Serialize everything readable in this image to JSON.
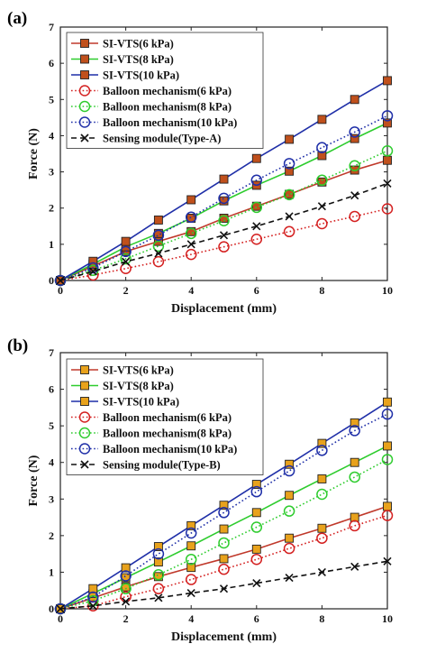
{
  "chart_data": [
    {
      "type": "line",
      "panel_label": "(a)",
      "xlabel": "Displacement (mm)",
      "ylabel": "Force (N)",
      "xlim": [
        0,
        10
      ],
      "ylim": [
        0,
        7
      ],
      "xticks": [
        0,
        2,
        4,
        6,
        8,
        10
      ],
      "yticks": [
        0,
        1,
        2,
        3,
        4,
        5,
        6,
        7
      ],
      "grid": false,
      "legend_position": "top-left",
      "x": [
        0,
        1,
        2,
        3,
        4,
        5,
        6,
        7,
        8,
        9,
        10
      ],
      "series": [
        {
          "name": "SI-VTS(6 kPa)",
          "values": [
            0,
            0.4,
            0.8,
            1.08,
            1.35,
            1.72,
            2.05,
            2.38,
            2.72,
            3.05,
            3.32
          ],
          "color": "#c0392b",
          "marker": "square",
          "marker_fill": "#c0501c",
          "dash": "solid"
        },
        {
          "name": "SI-VTS(8 kPa)",
          "values": [
            0,
            0.45,
            0.93,
            1.3,
            1.72,
            2.2,
            2.63,
            3.02,
            3.45,
            3.92,
            4.35
          ],
          "color": "#2ecc2e",
          "marker": "square",
          "marker_fill": "#c0501c",
          "dash": "solid"
        },
        {
          "name": "SI-VTS(10 kPa)",
          "values": [
            0,
            0.53,
            1.08,
            1.67,
            2.23,
            2.8,
            3.37,
            3.9,
            4.45,
            5.0,
            5.52
          ],
          "color": "#1f2fa8",
          "marker": "square",
          "marker_fill": "#c0501c",
          "dash": "solid"
        },
        {
          "name": "Balloon mechanism(6 kPa)",
          "values": [
            0,
            0.15,
            0.33,
            0.52,
            0.72,
            0.93,
            1.14,
            1.35,
            1.57,
            1.77,
            1.98
          ],
          "color": "#d42020",
          "marker": "circle",
          "marker_fill": "none",
          "dash": "dot"
        },
        {
          "name": "Balloon mechanism(8 kPa)",
          "values": [
            0,
            0.28,
            0.6,
            0.95,
            1.3,
            1.65,
            2.02,
            2.37,
            2.77,
            3.17,
            3.58
          ],
          "color": "#2ecc2e",
          "marker": "circle",
          "marker_fill": "none",
          "dash": "dot"
        },
        {
          "name": "Balloon mechanism(10 kPa)",
          "values": [
            0,
            0.35,
            0.8,
            1.25,
            1.75,
            2.27,
            2.77,
            3.23,
            3.67,
            4.1,
            4.55
          ],
          "color": "#1f2fa8",
          "marker": "circle",
          "marker_fill": "none",
          "dash": "dot"
        },
        {
          "name": "Sensing module(Type-A)",
          "values": [
            0,
            0.25,
            0.52,
            0.75,
            1.0,
            1.25,
            1.5,
            1.77,
            2.05,
            2.35,
            2.68
          ],
          "color": "#111111",
          "marker": "x",
          "marker_fill": "none",
          "dash": "dash"
        }
      ]
    },
    {
      "type": "line",
      "panel_label": "(b)",
      "xlabel": "Displacement (mm)",
      "ylabel": "Force (N)",
      "xlim": [
        0,
        10
      ],
      "ylim": [
        0,
        7
      ],
      "xticks": [
        0,
        2,
        4,
        6,
        8,
        10
      ],
      "yticks": [
        0,
        1,
        2,
        3,
        4,
        5,
        6,
        7
      ],
      "grid": false,
      "legend_position": "top-left",
      "x": [
        0,
        1,
        2,
        3,
        4,
        5,
        6,
        7,
        8,
        9,
        10
      ],
      "series": [
        {
          "name": "SI-VTS(6 kPa)",
          "values": [
            0,
            0.3,
            0.6,
            0.88,
            1.13,
            1.37,
            1.63,
            1.93,
            2.2,
            2.5,
            2.8
          ],
          "color": "#c0392b",
          "marker": "square",
          "marker_fill": "#e8a21c",
          "dash": "solid"
        },
        {
          "name": "SI-VTS(8 kPa)",
          "values": [
            0,
            0.42,
            0.85,
            1.28,
            1.72,
            2.18,
            2.63,
            3.1,
            3.55,
            4.0,
            4.45
          ],
          "color": "#2ecc2e",
          "marker": "square",
          "marker_fill": "#e8a21c",
          "dash": "solid"
        },
        {
          "name": "SI-VTS(10 kPa)",
          "values": [
            0,
            0.55,
            1.12,
            1.7,
            2.27,
            2.83,
            3.4,
            3.95,
            4.52,
            5.08,
            5.65
          ],
          "color": "#1f2fa8",
          "marker": "square",
          "marker_fill": "#e8a21c",
          "dash": "solid"
        },
        {
          "name": "Balloon mechanism(6 kPa)",
          "values": [
            0,
            0.08,
            0.33,
            0.55,
            0.8,
            1.08,
            1.35,
            1.65,
            1.93,
            2.27,
            2.55
          ],
          "color": "#d42020",
          "marker": "circle",
          "marker_fill": "none",
          "dash": "dot"
        },
        {
          "name": "Balloon mechanism(8 kPa)",
          "values": [
            0,
            0.22,
            0.55,
            0.93,
            1.35,
            1.8,
            2.23,
            2.67,
            3.13,
            3.6,
            4.08
          ],
          "color": "#2ecc2e",
          "marker": "circle",
          "marker_fill": "none",
          "dash": "dot"
        },
        {
          "name": "Balloon mechanism(10 kPa)",
          "values": [
            0,
            0.32,
            0.9,
            1.5,
            2.07,
            2.63,
            3.2,
            3.77,
            4.33,
            4.87,
            5.32
          ],
          "color": "#1f2fa8",
          "marker": "circle",
          "marker_fill": "none",
          "dash": "dot"
        },
        {
          "name": "Sensing module(Type-B)",
          "values": [
            0,
            0.08,
            0.2,
            0.3,
            0.43,
            0.55,
            0.7,
            0.85,
            1.0,
            1.15,
            1.3
          ],
          "color": "#111111",
          "marker": "x",
          "marker_fill": "none",
          "dash": "dash"
        }
      ]
    }
  ]
}
